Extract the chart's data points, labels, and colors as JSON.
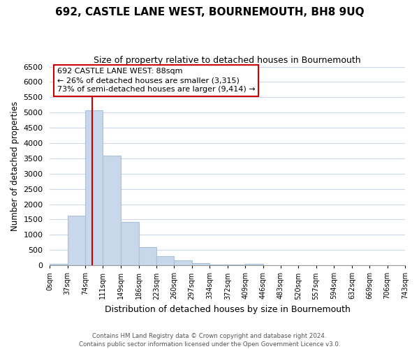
{
  "title": "692, CASTLE LANE WEST, BOURNEMOUTH, BH8 9UQ",
  "subtitle": "Size of property relative to detached houses in Bournemouth",
  "xlabel": "Distribution of detached houses by size in Bournemouth",
  "ylabel": "Number of detached properties",
  "bar_color": "#c8d8ea",
  "bar_edge_color": "#a8c0d8",
  "vline_x": 88,
  "vline_color": "#cc0000",
  "ylim": [
    0,
    6500
  ],
  "yticks": [
    0,
    500,
    1000,
    1500,
    2000,
    2500,
    3000,
    3500,
    4000,
    4500,
    5000,
    5500,
    6000,
    6500
  ],
  "bin_edges": [
    0,
    37,
    74,
    111,
    149,
    186,
    223,
    260,
    297,
    334,
    372,
    409,
    446,
    483,
    520,
    557,
    594,
    632,
    669,
    706,
    743
  ],
  "bin_counts": [
    60,
    1620,
    5080,
    3580,
    1430,
    590,
    295,
    155,
    80,
    35,
    15,
    55,
    0,
    0,
    0,
    0,
    0,
    0,
    0,
    0
  ],
  "xtick_labels": [
    "0sqm",
    "37sqm",
    "74sqm",
    "111sqm",
    "149sqm",
    "186sqm",
    "223sqm",
    "260sqm",
    "297sqm",
    "334sqm",
    "372sqm",
    "409sqm",
    "446sqm",
    "483sqm",
    "520sqm",
    "557sqm",
    "594sqm",
    "632sqm",
    "669sqm",
    "706sqm",
    "743sqm"
  ],
  "annotation_title": "692 CASTLE LANE WEST: 88sqm",
  "annotation_line1": "← 26% of detached houses are smaller (3,315)",
  "annotation_line2": "73% of semi-detached houses are larger (9,414) →",
  "footer_line1": "Contains HM Land Registry data © Crown copyright and database right 2024.",
  "footer_line2": "Contains public sector information licensed under the Open Government Licence v3.0.",
  "background_color": "#ffffff",
  "grid_color": "#ccd8e8"
}
